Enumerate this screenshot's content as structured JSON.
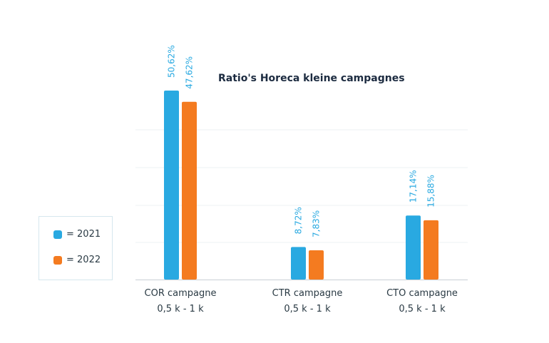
{
  "chart_data": {
    "type": "bar",
    "title": "Ratio's Horeca kleine campagnes",
    "categories": [
      [
        "COR campagne",
        "0,5 k - 1 k"
      ],
      [
        "CTR campagne",
        "0,5 k - 1 k"
      ],
      [
        "CTO campagne",
        "0,5 k - 1 k"
      ]
    ],
    "series": [
      {
        "name": "= 2021",
        "color": "#29a9e1",
        "values": [
          50.62,
          8.72,
          17.14
        ],
        "labels": [
          "50,62%",
          "8,72%",
          "17,14%"
        ]
      },
      {
        "name": "= 2022",
        "color": "#f47b20",
        "values": [
          47.62,
          7.83,
          15.88
        ],
        "labels": [
          "47,62%",
          "7,83%",
          "15,88%"
        ]
      }
    ],
    "ylim": [
      0,
      50.62
    ],
    "grid": true,
    "legend_position": "left"
  }
}
